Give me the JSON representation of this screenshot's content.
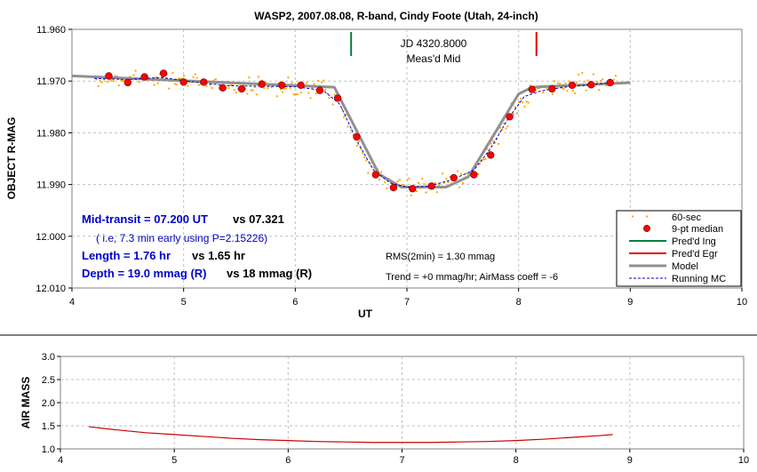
{
  "chart_data": [
    {
      "type": "scatter",
      "title": "WASP2, 2007.08.08, R-band, Cindy Foote (Utah, 24-inch)",
      "xlabel": "UT",
      "ylabel": "OBJECT R-MAG",
      "xlim": [
        4,
        10
      ],
      "ylim": [
        11.96,
        12.01
      ],
      "y_inverted": true,
      "grid": true,
      "x_ticks": [
        "4",
        "5",
        "6",
        "7",
        "8",
        "9",
        "10"
      ],
      "y_ticks": [
        "11.960",
        "11.970",
        "11.980",
        "11.990",
        "12.000",
        "12.010"
      ],
      "legend_position": "bottom-right",
      "legend": [
        "60-sec",
        "9-pt median",
        "Pred'd Ing",
        "Pred'd Egr",
        "Model",
        "Running MC"
      ],
      "annotations": {
        "mid_label_1": "JD 4320.8000",
        "mid_label_2": "Meas'd Mid",
        "mid_transit": "Mid-transit = 07.200 UT",
        "mid_transit_vs": "vs 07.321",
        "early_note": "( i.e, 7.3 min early using P=2.15226)",
        "length": "Length = 1.76 hr",
        "length_vs": "vs 1.65 hr",
        "depth": "Depth = 19.0 mmag (R)",
        "depth_vs": "vs 18 mmag (R)",
        "rms": "RMS(2min) = 1.30 mmag",
        "trend": "Trend = +0 mmag/hr; AirMass coeff = -6"
      },
      "predicted_ingress_x": 6.5,
      "predicted_egress_x": 8.16,
      "colors": {
        "raw": "#ffa500",
        "median": "#ff0000",
        "ingress": "#008040",
        "egress": "#e00000",
        "model": "#909090",
        "running": "#0000cc",
        "blue_text": "#0000cc"
      },
      "series": [
        {
          "name": "9-pt median",
          "x": [
            4.33,
            4.5,
            4.65,
            4.82,
            5.0,
            5.18,
            5.35,
            5.52,
            5.7,
            5.88,
            6.05,
            6.22,
            6.38,
            6.55,
            6.72,
            6.88,
            7.05,
            7.22,
            7.42,
            7.6,
            7.75,
            7.92,
            8.12,
            8.3,
            8.48,
            8.65,
            8.82
          ],
          "y": [
            11.969,
            11.9703,
            11.9692,
            11.9685,
            11.9702,
            11.9702,
            11.9713,
            11.9715,
            11.9706,
            11.9708,
            11.9708,
            11.9718,
            11.9733,
            11.9808,
            11.9881,
            11.9906,
            11.9908,
            11.9903,
            11.9887,
            11.9881,
            11.9843,
            11.9769,
            11.9716,
            11.9715,
            11.9708,
            11.9707,
            11.9703
          ]
        },
        {
          "name": "Model",
          "x": [
            4.0,
            6.35,
            6.75,
            6.95,
            7.35,
            7.55,
            8.0,
            8.12,
            9.0
          ],
          "y": [
            11.969,
            11.9712,
            11.988,
            11.9905,
            11.9905,
            11.9885,
            11.9725,
            11.9712,
            11.9703
          ]
        },
        {
          "name": "Running MC",
          "x": [
            4.2,
            4.5,
            4.8,
            5.1,
            5.4,
            5.7,
            6.0,
            6.25,
            6.4,
            6.55,
            6.7,
            6.85,
            7.0,
            7.2,
            7.4,
            7.6,
            7.75,
            7.9,
            8.05,
            8.2,
            8.4,
            8.6,
            8.85
          ],
          "y": [
            11.9695,
            11.9697,
            11.9693,
            11.9702,
            11.9709,
            11.971,
            11.9711,
            11.9718,
            11.9745,
            11.9815,
            11.9872,
            11.9897,
            11.9905,
            11.9903,
            11.9891,
            11.9872,
            11.983,
            11.9775,
            11.973,
            11.9719,
            11.9712,
            11.9708,
            11.9702
          ]
        }
      ]
    },
    {
      "type": "line",
      "xlabel": "",
      "ylabel": "AIR MASS",
      "xlim": [
        4,
        10
      ],
      "ylim": [
        1.0,
        3.0
      ],
      "grid": true,
      "x_ticks": [
        "4",
        "5",
        "6",
        "7",
        "8",
        "9",
        "10"
      ],
      "y_ticks": [
        "1.0",
        "1.5",
        "2.0",
        "2.5",
        "3.0"
      ],
      "series": [
        {
          "name": "",
          "color": "#cc0000",
          "x": [
            4.25,
            4.5,
            4.75,
            5.0,
            5.25,
            5.5,
            5.75,
            6.0,
            6.25,
            6.5,
            6.75,
            7.0,
            7.25,
            7.5,
            7.75,
            8.0,
            8.25,
            8.5,
            8.75,
            8.85
          ],
          "y": [
            1.48,
            1.41,
            1.35,
            1.31,
            1.27,
            1.23,
            1.2,
            1.18,
            1.16,
            1.15,
            1.14,
            1.14,
            1.14,
            1.15,
            1.16,
            1.18,
            1.21,
            1.25,
            1.29,
            1.31
          ]
        }
      ]
    }
  ]
}
